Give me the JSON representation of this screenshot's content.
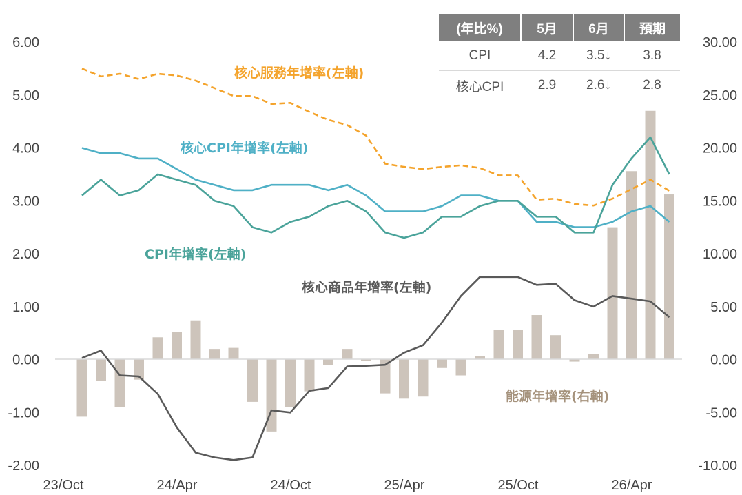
{
  "table": {
    "headers": [
      "(年比%)",
      "5月",
      "6月",
      "預期"
    ],
    "rows": [
      {
        "label": "CPI",
        "may": "4.2",
        "jun": "3.5",
        "exp": "3.8"
      },
      {
        "label": "核心CPI",
        "may": "2.9",
        "jun": "2.6",
        "exp": "2.8"
      }
    ],
    "down_arrow": "↓"
  },
  "colors": {
    "core_services": "#f4a32b",
    "core_cpi": "#4fb0c6",
    "cpi": "#4aa39a",
    "core_goods": "#595959",
    "energy": "#cdc4bb",
    "energy_label": "#a5927c",
    "header_bg": "#7f7f7f"
  },
  "chart_data": {
    "type": "bar+line",
    "x_tick_labels": [
      "23/Oct",
      "24/Apr",
      "24/Oct",
      "25/Apr",
      "25/Oct",
      "26/Apr"
    ],
    "y_left": {
      "range": [
        -2,
        6
      ],
      "ticks": [
        "6.00",
        "5.00",
        "4.00",
        "3.00",
        "2.00",
        "1.00",
        "0.00",
        "-1.00",
        "-2.00"
      ]
    },
    "y_right": {
      "range": [
        -10,
        30
      ],
      "ticks": [
        "30.00",
        "25.00",
        "20.00",
        "15.00",
        "10.00",
        "5.00",
        "0.00",
        "-5.00",
        "-10.00"
      ]
    },
    "grid": false,
    "n_points": 32,
    "series": [
      {
        "name": "核心服務年增率(左軸)",
        "axis": "left",
        "type": "line-dashed",
        "values": [
          5.5,
          5.35,
          5.4,
          5.3,
          5.4,
          5.37,
          5.27,
          5.13,
          4.98,
          4.98,
          4.83,
          4.85,
          4.68,
          4.53,
          4.43,
          4.23,
          3.7,
          3.64,
          3.6,
          3.64,
          3.67,
          3.62,
          3.48,
          3.48,
          3.02,
          3.04,
          2.94,
          2.91,
          3.04,
          3.22,
          3.4,
          3.19
        ]
      },
      {
        "name": "核心CPI年增率(左軸)",
        "axis": "left",
        "type": "line",
        "values": [
          4.0,
          3.9,
          3.9,
          3.8,
          3.8,
          3.6,
          3.4,
          3.3,
          3.2,
          3.2,
          3.3,
          3.3,
          3.3,
          3.2,
          3.3,
          3.1,
          2.8,
          2.8,
          2.8,
          2.9,
          3.1,
          3.1,
          3.0,
          3.0,
          2.6,
          2.6,
          2.5,
          2.5,
          2.6,
          2.8,
          2.9,
          2.6
        ]
      },
      {
        "name": "CPI年增率(左軸)",
        "axis": "left",
        "type": "line",
        "values": [
          3.1,
          3.4,
          3.1,
          3.2,
          3.5,
          3.4,
          3.3,
          3.0,
          2.9,
          2.5,
          2.4,
          2.6,
          2.7,
          2.9,
          3.0,
          2.8,
          2.4,
          2.3,
          2.4,
          2.7,
          2.7,
          2.9,
          3.0,
          3.0,
          2.7,
          2.7,
          2.4,
          2.4,
          3.3,
          3.8,
          4.2,
          3.5
        ]
      },
      {
        "name": "核心商品年增率(左軸)",
        "axis": "left",
        "type": "line",
        "values": [
          0.03,
          0.17,
          -0.3,
          -0.32,
          -0.65,
          -1.28,
          -1.76,
          -1.85,
          -1.9,
          -1.85,
          -0.96,
          -1.0,
          -0.59,
          -0.54,
          -0.13,
          -0.12,
          -0.1,
          0.13,
          0.27,
          0.7,
          1.2,
          1.56,
          1.56,
          1.56,
          1.41,
          1.43,
          1.12,
          1.0,
          1.2,
          1.15,
          1.1,
          0.8
        ]
      },
      {
        "name": "能源年增率(右軸)",
        "axis": "right",
        "type": "bar",
        "values": [
          -5.4,
          -2.0,
          -4.5,
          -1.9,
          2.1,
          2.6,
          3.7,
          1.0,
          1.1,
          -4.0,
          -6.8,
          -4.5,
          -3.0,
          -0.5,
          1.0,
          -0.1,
          -3.2,
          -3.7,
          -3.5,
          -0.8,
          -1.5,
          0.3,
          2.8,
          2.8,
          4.2,
          2.3,
          -0.2,
          0.5,
          12.5,
          17.8,
          23.5,
          15.6
        ]
      }
    ],
    "annotations": [
      {
        "text": "核心服務年增率(左軸)",
        "series": 0
      },
      {
        "text": "核心CPI年增率(左軸)",
        "series": 1
      },
      {
        "text": "CPI年增率(左軸)",
        "series": 2
      },
      {
        "text": "核心商品年增率(左軸)",
        "series": 3
      },
      {
        "text": "能源年增率(右軸)",
        "series": 4
      }
    ]
  }
}
